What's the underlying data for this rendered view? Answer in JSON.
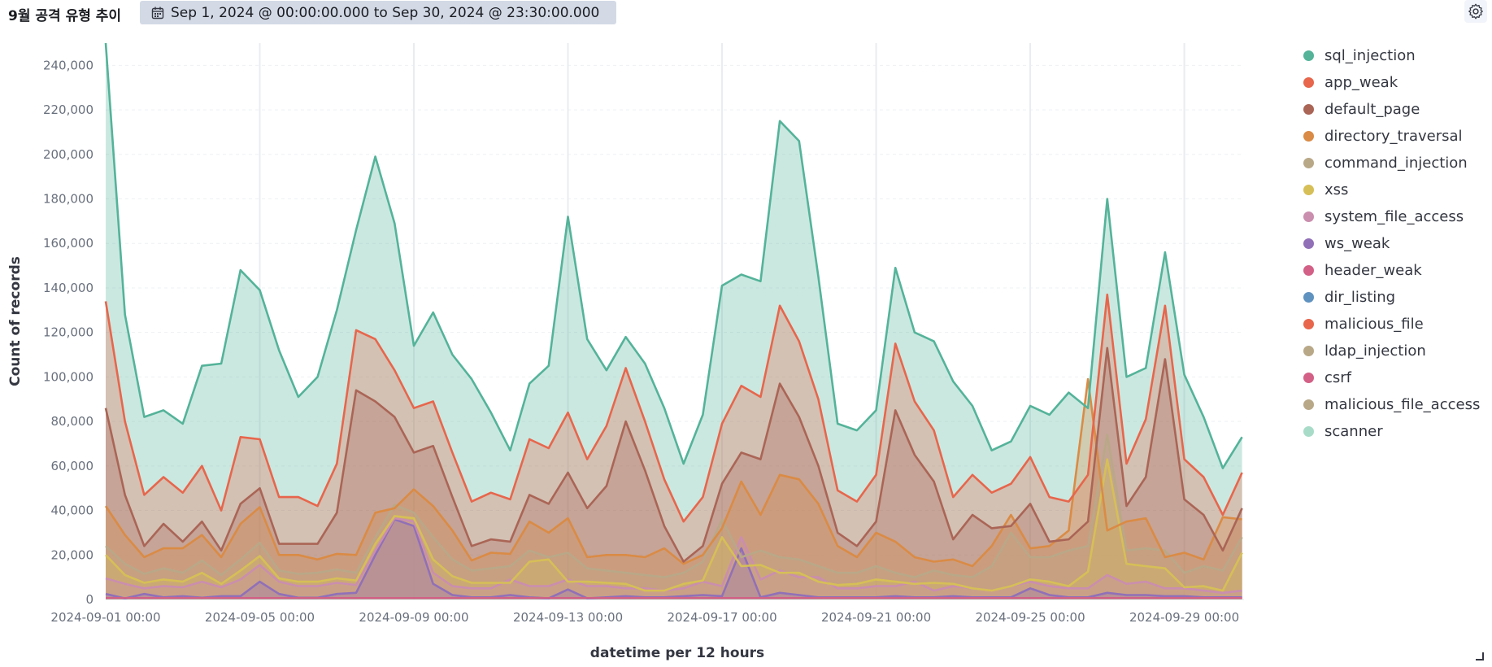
{
  "header": {
    "title": "9월 공격 유형 추이",
    "date_range": "Sep 1, 2024 @ 00:00:00.000 to Sep 30, 2024 @ 23:30:00.000",
    "calendar_icon": "calendar-icon",
    "settings_icon": "gear-icon"
  },
  "chart_data": {
    "type": "area",
    "stacked": true,
    "xlabel": "datetime per 12 hours",
    "ylabel": "Count of records",
    "ylim": [
      0,
      250000
    ],
    "grid": true,
    "legend_position": "right",
    "x": [
      "2024-09-01 00:00",
      "2024-09-01 12:00",
      "2024-09-02 00:00",
      "2024-09-02 12:00",
      "2024-09-03 00:00",
      "2024-09-03 12:00",
      "2024-09-04 00:00",
      "2024-09-04 12:00",
      "2024-09-05 00:00",
      "2024-09-05 12:00",
      "2024-09-06 00:00",
      "2024-09-06 12:00",
      "2024-09-07 00:00",
      "2024-09-07 12:00",
      "2024-09-08 00:00",
      "2024-09-08 12:00",
      "2024-09-09 00:00",
      "2024-09-09 12:00",
      "2024-09-10 00:00",
      "2024-09-10 12:00",
      "2024-09-11 00:00",
      "2024-09-11 12:00",
      "2024-09-12 00:00",
      "2024-09-12 12:00",
      "2024-09-13 00:00",
      "2024-09-13 12:00",
      "2024-09-14 00:00",
      "2024-09-14 12:00",
      "2024-09-15 00:00",
      "2024-09-15 12:00",
      "2024-09-16 00:00",
      "2024-09-16 12:00",
      "2024-09-17 00:00",
      "2024-09-17 12:00",
      "2024-09-18 00:00",
      "2024-09-18 12:00",
      "2024-09-19 00:00",
      "2024-09-19 12:00",
      "2024-09-20 00:00",
      "2024-09-20 12:00",
      "2024-09-21 00:00",
      "2024-09-21 12:00",
      "2024-09-22 00:00",
      "2024-09-22 12:00",
      "2024-09-23 00:00",
      "2024-09-23 12:00",
      "2024-09-24 00:00",
      "2024-09-24 12:00",
      "2024-09-25 00:00",
      "2024-09-25 12:00",
      "2024-09-26 00:00",
      "2024-09-26 12:00",
      "2024-09-27 00:00",
      "2024-09-27 12:00",
      "2024-09-28 00:00",
      "2024-09-28 12:00",
      "2024-09-29 00:00",
      "2024-09-29 12:00",
      "2024-09-30 00:00",
      "2024-09-30 12:00"
    ],
    "x_tick_labels": [
      "2024-09-01 00:00",
      "2024-09-05 00:00",
      "2024-09-09 00:00",
      "2024-09-13 00:00",
      "2024-09-17 00:00",
      "2024-09-21 00:00",
      "2024-09-25 00:00",
      "2024-09-29 00:00"
    ],
    "y_tick_labels": [
      "0",
      "20,000",
      "40,000",
      "60,000",
      "80,000",
      "100,000",
      "120,000",
      "140,000",
      "160,000",
      "180,000",
      "200,000",
      "220,000",
      "240,000"
    ],
    "cumulative_levels": [
      {
        "name": "ws_weak",
        "color": "#9170b8",
        "values": [
          2500,
          500,
          2500,
          1000,
          1500,
          800,
          1500,
          1500,
          8000,
          2500,
          800,
          800,
          2500,
          3000,
          20000,
          36000,
          33000,
          7000,
          2000,
          1000,
          1000,
          2000,
          1000,
          500,
          4500,
          500,
          1000,
          1500,
          1000,
          1000,
          1500,
          2000,
          1500,
          23000,
          1000,
          3000,
          2000,
          1000,
          1000,
          1000,
          1000,
          1500,
          1000,
          1000,
          1500,
          1000,
          1000,
          1000,
          5000,
          2000,
          1000,
          1000,
          3000,
          2000,
          2000,
          1500,
          1500,
          1000,
          1000,
          1000
        ]
      },
      {
        "name": "system_file_access",
        "color": "#ca8eae",
        "values": [
          9500,
          7000,
          5000,
          6000,
          5500,
          8000,
          5500,
          9000,
          15500,
          8000,
          6000,
          6000,
          7500,
          6500,
          22000,
          36500,
          35000,
          12000,
          6000,
          5000,
          5000,
          9000,
          6000,
          6000,
          9000,
          6000,
          6000,
          5000,
          5000,
          4000,
          5000,
          8000,
          6000,
          28000,
          9000,
          13000,
          10000,
          10000,
          5000,
          5000,
          6000,
          6000,
          8000,
          4000,
          6000,
          5000,
          4000,
          6000,
          8000,
          6000,
          5000,
          5000,
          11000,
          7000,
          8000,
          5000,
          5000,
          4000,
          3000,
          4000
        ]
      },
      {
        "name": "xss",
        "color": "#d6bf57",
        "values": [
          20000,
          11000,
          7500,
          9000,
          8000,
          12000,
          7000,
          13000,
          19500,
          9500,
          8000,
          8000,
          9500,
          8500,
          25000,
          37500,
          36500,
          18000,
          10500,
          7500,
          7500,
          7500,
          17000,
          18000,
          8000,
          8000,
          7500,
          7000,
          4000,
          4000,
          7000,
          8500,
          28000,
          15000,
          15500,
          12000,
          12000,
          8000,
          6500,
          7000,
          9000,
          8000,
          7000,
          7500,
          7000,
          5000,
          4000,
          6000,
          9000,
          8000,
          6000,
          12500,
          63000,
          16000,
          15000,
          14000,
          5500,
          6000,
          4000,
          21000
        ]
      },
      {
        "name": "command_injection",
        "color": "#b9a888",
        "values": [
          24000,
          16000,
          11500,
          14000,
          12000,
          17500,
          11000,
          18000,
          25500,
          13000,
          11500,
          12000,
          13500,
          12000,
          28000,
          42500,
          39000,
          28000,
          18000,
          13000,
          14000,
          15000,
          22000,
          19000,
          21000,
          14000,
          13000,
          12000,
          11000,
          10000,
          12000,
          17000,
          36000,
          19000,
          22000,
          19000,
          18000,
          15000,
          12000,
          12000,
          15000,
          12000,
          10000,
          13000,
          11000,
          10000,
          15000,
          30000,
          19000,
          19000,
          22000,
          24000,
          74000,
          22000,
          23000,
          22000,
          12000,
          15000,
          13000,
          28000
        ]
      },
      {
        "name": "directory_traversal",
        "color": "#da8b45",
        "values": [
          42000,
          29000,
          19000,
          23000,
          23000,
          29000,
          19000,
          34000,
          41500,
          20000,
          20000,
          18000,
          20500,
          20000,
          39000,
          41000,
          49500,
          42000,
          31000,
          17500,
          21000,
          20500,
          35000,
          30000,
          36500,
          19000,
          20000,
          20000,
          19000,
          23000,
          16000,
          20000,
          32000,
          53000,
          38000,
          56000,
          54000,
          43000,
          24000,
          19000,
          30000,
          26000,
          19000,
          17000,
          18000,
          15000,
          24000,
          38000,
          23000,
          24000,
          31000,
          99000,
          31000,
          35000,
          36500,
          19000,
          21000,
          18000,
          37000,
          36000
        ]
      },
      {
        "name": "default_page",
        "color": "#aa6556",
        "values": [
          86000,
          47000,
          24000,
          34000,
          26000,
          35000,
          22000,
          43000,
          50000,
          25000,
          25000,
          25000,
          39000,
          94000,
          89000,
          82000,
          66000,
          69000,
          46000,
          24000,
          27000,
          26000,
          47000,
          43000,
          57000,
          41000,
          51000,
          80000,
          58000,
          33000,
          17000,
          24000,
          52000,
          66000,
          63000,
          97000,
          82000,
          60000,
          30000,
          24000,
          35000,
          85000,
          65000,
          53000,
          27000,
          38000,
          32000,
          33000,
          43000,
          26000,
          27000,
          35000,
          113000,
          42000,
          55000,
          108000,
          45000,
          38000,
          22000,
          41000
        ]
      },
      {
        "name": "app_weak",
        "color": "#e7664c",
        "values": [
          134000,
          80000,
          47000,
          55000,
          48000,
          60000,
          40000,
          73000,
          72000,
          46000,
          46000,
          42000,
          61000,
          121000,
          117000,
          103000,
          86000,
          89000,
          66000,
          44000,
          48000,
          45000,
          72000,
          68000,
          84000,
          63000,
          78000,
          104000,
          80000,
          54000,
          35000,
          46000,
          79000,
          96000,
          91000,
          132000,
          116000,
          90000,
          49000,
          44000,
          56000,
          115000,
          89000,
          76000,
          46000,
          56000,
          48000,
          52000,
          64000,
          46000,
          44000,
          56000,
          137000,
          61000,
          81000,
          132000,
          63000,
          55000,
          38000,
          57000
        ]
      },
      {
        "name": "sql_injection",
        "color": "#54b399",
        "values": [
          250000,
          128000,
          82000,
          85000,
          79000,
          105000,
          106000,
          148000,
          139000,
          112000,
          91000,
          100000,
          130000,
          166000,
          199000,
          169000,
          114000,
          129000,
          110000,
          99000,
          84000,
          67000,
          97000,
          105000,
          172000,
          117000,
          103000,
          118000,
          106000,
          86000,
          61000,
          83000,
          141000,
          146000,
          143000,
          215000,
          206000,
          145000,
          79000,
          76000,
          85000,
          149000,
          120000,
          116000,
          98000,
          87000,
          67000,
          71000,
          87000,
          83000,
          93000,
          86000,
          180000,
          100000,
          104000,
          156000,
          101000,
          82000,
          59000,
          73000
        ]
      }
    ],
    "legend": [
      {
        "name": "sql_injection",
        "color": "#54b399"
      },
      {
        "name": "app_weak",
        "color": "#e7664c"
      },
      {
        "name": "default_page",
        "color": "#aa6556"
      },
      {
        "name": "directory_traversal",
        "color": "#da8b45"
      },
      {
        "name": "command_injection",
        "color": "#b9a888"
      },
      {
        "name": "xss",
        "color": "#d6bf57"
      },
      {
        "name": "system_file_access",
        "color": "#ca8eae"
      },
      {
        "name": "ws_weak",
        "color": "#9170b8"
      },
      {
        "name": "header_weak",
        "color": "#d36086"
      },
      {
        "name": "dir_listing",
        "color": "#6092c0"
      },
      {
        "name": "malicious_file",
        "color": "#e7664c"
      },
      {
        "name": "ldap_injection",
        "color": "#b9a888"
      },
      {
        "name": "csrf",
        "color": "#d36086"
      },
      {
        "name": "malicious_file_access",
        "color": "#b9a888"
      },
      {
        "name": "scanner",
        "color": "#a8dcc9"
      }
    ]
  }
}
